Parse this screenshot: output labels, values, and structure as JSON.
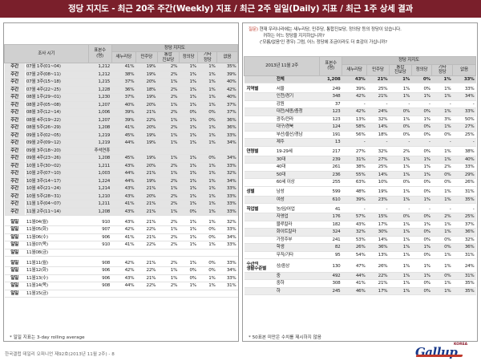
{
  "title": "정당 지지도 - 최근 20주 주간(Weekly) 지표 / 최근 2주 일일(Daily) 지표 / 최근 1주 상세 결과",
  "left": {
    "col_header": "조사 시기",
    "n_header": "표본수\n(명)",
    "group_header": "정당 지지도",
    "parties": [
      "새누리당",
      "민주당",
      "통합\n진보당",
      "정의당",
      "기타\n정당",
      "없음"
    ],
    "weekly": [
      {
        "cat": "주간",
        "period": "07월 1주(01~04)",
        "n": "1,212",
        "v": [
          "41%",
          "19%",
          "2%",
          "1%",
          "1%",
          "35%"
        ]
      },
      {
        "cat": "주간",
        "period": "07월 2주(08~11)",
        "n": "1,212",
        "v": [
          "38%",
          "19%",
          "2%",
          "1%",
          "1%",
          "39%"
        ]
      },
      {
        "cat": "주간",
        "period": "07월 3주(15~18)",
        "n": "1,215",
        "v": [
          "37%",
          "20%",
          "1%",
          "1%",
          "1%",
          "40%"
        ]
      },
      {
        "cat": "주간",
        "period": "07월 4주(22~25)",
        "n": "1,228",
        "v": [
          "36%",
          "18%",
          "2%",
          "1%",
          "1%",
          "42%"
        ]
      },
      {
        "cat": "주간",
        "period": "08월 1주(29~01)",
        "n": "1,230",
        "v": [
          "37%",
          "19%",
          "2%",
          "1%",
          "1%",
          "40%"
        ]
      },
      {
        "cat": "주간",
        "period": "08월 2주(05~08)",
        "n": "1,207",
        "v": [
          "40%",
          "20%",
          "1%",
          "1%",
          "1%",
          "37%"
        ]
      },
      {
        "cat": "주간",
        "period": "08월 3주(12~14)",
        "n": "1,006",
        "v": [
          "39%",
          "21%",
          "2%",
          "0%",
          "0%",
          "37%"
        ]
      },
      {
        "cat": "주간",
        "period": "08월 4주(19~22)",
        "n": "1,207",
        "v": [
          "39%",
          "22%",
          "1%",
          "1%",
          "0%",
          "36%"
        ]
      },
      {
        "cat": "주간",
        "period": "08월 5주(26~29)",
        "n": "1,208",
        "v": [
          "41%",
          "20%",
          "2%",
          "1%",
          "1%",
          "36%"
        ]
      },
      {
        "cat": "주간",
        "period": "09월 1주(02~05)",
        "n": "1,219",
        "v": [
          "45%",
          "19%",
          "1%",
          "1%",
          "1%",
          "33%"
        ]
      },
      {
        "cat": "주간",
        "period": "09월 2주(09~12)",
        "n": "1,219",
        "v": [
          "44%",
          "19%",
          "1%",
          "1%",
          "1%",
          "34%"
        ]
      },
      {
        "cat": "주간",
        "period": "09월 3주(18~20)",
        "n": "추석연휴",
        "v": [
          "",
          "",
          "",
          "",
          "",
          ""
        ]
      },
      {
        "cat": "주간",
        "period": "09월 4주(23~26)",
        "n": "1,208",
        "v": [
          "45%",
          "19%",
          "1%",
          "1%",
          "0%",
          "34%"
        ]
      },
      {
        "cat": "주간",
        "period": "10월 1주(30~02)",
        "n": "1,211",
        "v": [
          "43%",
          "20%",
          "2%",
          "1%",
          "1%",
          "33%"
        ]
      },
      {
        "cat": "주간",
        "period": "10월 2주(07~10)",
        "n": "1,003",
        "v": [
          "44%",
          "21%",
          "1%",
          "1%",
          "1%",
          "32%"
        ]
      },
      {
        "cat": "주간",
        "period": "10월 3주(14~17)",
        "n": "1,224",
        "v": [
          "44%",
          "19%",
          "2%",
          "1%",
          "1%",
          "34%"
        ]
      },
      {
        "cat": "주간",
        "period": "10월 4주(21~24)",
        "n": "1,214",
        "v": [
          "43%",
          "21%",
          "1%",
          "1%",
          "1%",
          "33%"
        ]
      },
      {
        "cat": "주간",
        "period": "10월 5주(28~31)",
        "n": "1,210",
        "v": [
          "43%",
          "20%",
          "2%",
          "1%",
          "1%",
          "33%"
        ]
      },
      {
        "cat": "주간",
        "period": "11월 1주(04~07)",
        "n": "1,211",
        "v": [
          "41%",
          "21%",
          "2%",
          "1%",
          "1%",
          "33%"
        ]
      },
      {
        "cat": "주간",
        "period": "11월 2주(11~14)",
        "n": "1,208",
        "v": [
          "43%",
          "21%",
          "1%",
          "0%",
          "1%",
          "33%"
        ]
      }
    ],
    "daily1": [
      {
        "cat": "일일",
        "period": "11월04(월)",
        "n": "910",
        "v": [
          "43%",
          "21%",
          "2%",
          "1%",
          "1%",
          "32%"
        ]
      },
      {
        "cat": "일일",
        "period": "11월05(화)",
        "n": "907",
        "v": [
          "42%",
          "22%",
          "1%",
          "1%",
          "0%",
          "33%"
        ]
      },
      {
        "cat": "일일",
        "period": "11월06(수)",
        "n": "906",
        "v": [
          "41%",
          "21%",
          "2%",
          "1%",
          "0%",
          "34%"
        ]
      },
      {
        "cat": "일일",
        "period": "11월07(목)",
        "n": "910",
        "v": [
          "41%",
          "22%",
          "2%",
          "1%",
          "1%",
          "33%"
        ]
      },
      {
        "cat": "일일",
        "period": "11월08(금)",
        "n": "",
        "v": [
          "",
          "",
          "",
          "",
          "",
          ""
        ]
      }
    ],
    "daily2": [
      {
        "cat": "일일",
        "period": "11월11(월)",
        "n": "908",
        "v": [
          "42%",
          "21%",
          "2%",
          "1%",
          "0%",
          "33%"
        ]
      },
      {
        "cat": "일일",
        "period": "11월12(화)",
        "n": "906",
        "v": [
          "42%",
          "22%",
          "1%",
          "0%",
          "0%",
          "34%"
        ]
      },
      {
        "cat": "일일",
        "period": "11월13(수)",
        "n": "906",
        "v": [
          "43%",
          "21%",
          "1%",
          "0%",
          "1%",
          "33%"
        ]
      },
      {
        "cat": "일일",
        "period": "11월14(목)",
        "n": "908",
        "v": [
          "44%",
          "22%",
          "2%",
          "1%",
          "1%",
          "31%"
        ]
      },
      {
        "cat": "일일",
        "period": "11월15(금)",
        "n": "",
        "v": [
          "",
          "",
          "",
          "",
          "",
          ""
        ]
      }
    ],
    "note": "* 일일 지표는 3-day rolling average"
  },
  "right": {
    "question_1": "질문) 현재 우리나라에는 새누리당, 민주당, 통합진보당, 정의당 등의 정당이 있습니다.",
    "question_2": "귀하는 어느 정당을 지지하십니까?",
    "question_3": "('모름/없음'인 경우) 그럼, 어느 정당에 조금이라도 더 호감이 가십니까?",
    "question_label": "질문)",
    "table_title": "2013년 11월 2주",
    "n_header": "표본수\n(명)",
    "group_header": "정당 지지도",
    "parties": [
      "새누리당",
      "민주당",
      "통합\n진보당",
      "정의당",
      "기타\n정당",
      "없음"
    ],
    "total": {
      "label": "전체",
      "n": "1,208",
      "v": [
        "43%",
        "21%",
        "1%",
        "0%",
        "1%",
        "33%"
      ]
    },
    "groups": [
      {
        "label": "지역별",
        "rows": [
          {
            "sub": "서울",
            "n": "249",
            "v": [
              "39%",
              "25%",
              "1%",
              "0%",
              "1%",
              "33%"
            ]
          },
          {
            "sub": "인천/경기",
            "n": "348",
            "v": [
              "42%",
              "21%",
              "1%",
              "1%",
              "1%",
              "34%"
            ]
          },
          {
            "sub": "강원",
            "n": "37",
            "v": [
              "-",
              "-",
              "-",
              "-",
              "-",
              "-"
            ]
          },
          {
            "sub": "대전/세종/충청",
            "n": "123",
            "v": [
              "42%",
              "24%",
              "0%",
              "0%",
              "1%",
              "33%"
            ]
          },
          {
            "sub": "광주/전라",
            "n": "123",
            "v": [
              "13%",
              "32%",
              "1%",
              "1%",
              "3%",
              "50%"
            ]
          },
          {
            "sub": "대구/경북",
            "n": "124",
            "v": [
              "58%",
              "14%",
              "0%",
              "0%",
              "1%",
              "27%"
            ]
          },
          {
            "sub": "부산/울산/경남",
            "n": "191",
            "v": [
              "56%",
              "18%",
              "0%",
              "0%",
              "0%",
              "25%"
            ]
          },
          {
            "sub": "제주",
            "n": "13",
            "v": [
              "-",
              "-",
              "-",
              "-",
              "-",
              "-"
            ]
          }
        ]
      },
      {
        "label": "연령별",
        "rows": [
          {
            "sub": "19-29세",
            "n": "217",
            "v": [
              "27%",
              "32%",
              "2%",
              "0%",
              "1%",
              "38%"
            ]
          },
          {
            "sub": "30대",
            "n": "239",
            "v": [
              "31%",
              "27%",
              "1%",
              "1%",
              "1%",
              "40%"
            ]
          },
          {
            "sub": "40대",
            "n": "261",
            "v": [
              "38%",
              "25%",
              "1%",
              "1%",
              "2%",
              "33%"
            ]
          },
          {
            "sub": "50대",
            "n": "236",
            "v": [
              "55%",
              "14%",
              "1%",
              "1%",
              "0%",
              "29%"
            ]
          },
          {
            "sub": "60세 이상",
            "n": "255",
            "v": [
              "63%",
              "10%",
              "0%",
              "0%",
              "0%",
              "26%"
            ]
          }
        ]
      },
      {
        "label": "성별",
        "rows": [
          {
            "sub": "남성",
            "n": "599",
            "v": [
              "48%",
              "19%",
              "1%",
              "0%",
              "1%",
              "31%"
            ]
          },
          {
            "sub": "여성",
            "n": "610",
            "v": [
              "39%",
              "23%",
              "1%",
              "1%",
              "1%",
              "35%"
            ]
          }
        ]
      },
      {
        "label": "직업별",
        "rows": [
          {
            "sub": "농/임/어업",
            "n": "41",
            "v": [
              "-",
              "-",
              "-",
              "-",
              "-",
              "-"
            ]
          },
          {
            "sub": "자영업",
            "n": "176",
            "v": [
              "57%",
              "15%",
              "0%",
              "0%",
              "2%",
              "25%"
            ]
          },
          {
            "sub": "블루칼라",
            "n": "182",
            "v": [
              "43%",
              "17%",
              "1%",
              "1%",
              "1%",
              "37%"
            ]
          },
          {
            "sub": "화이트칼라",
            "n": "324",
            "v": [
              "32%",
              "30%",
              "1%",
              "0%",
              "1%",
              "36%"
            ]
          },
          {
            "sub": "가정주부",
            "n": "241",
            "v": [
              "53%",
              "14%",
              "1%",
              "0%",
              "0%",
              "32%"
            ]
          },
          {
            "sub": "학생",
            "n": "82",
            "v": [
              "26%",
              "36%",
              "1%",
              "1%",
              "0%",
              "36%"
            ]
          },
          {
            "sub": "무직/기타",
            "n": "95",
            "v": [
              "54%",
              "13%",
              "1%",
              "0%",
              "1%",
              "31%"
            ]
          }
        ]
      },
      {
        "label": "주관적\n생활수준별",
        "rows": [
          {
            "sub": "상/중상",
            "n": "130",
            "v": [
              "47%",
              "26%",
              "1%",
              "1%",
              "1%",
              "24%"
            ]
          },
          {
            "sub": "중",
            "n": "492",
            "v": [
              "44%",
              "22%",
              "1%",
              "1%",
              "0%",
              "31%"
            ]
          },
          {
            "sub": "중하",
            "n": "308",
            "v": [
              "41%",
              "21%",
              "1%",
              "0%",
              "1%",
              "35%"
            ]
          },
          {
            "sub": "하",
            "n": "245",
            "v": [
              "46%",
              "17%",
              "1%",
              "0%",
              "1%",
              "35%"
            ]
          }
        ]
      }
    ],
    "note": "* 50표본 미만은 수치를 제시하지 않음"
  },
  "footer": "한국갤럽 데일리 오피니언 제92호(2013년 11월 2주) - 8",
  "logo": {
    "word": "Gallup",
    "korea": "KOREA"
  }
}
